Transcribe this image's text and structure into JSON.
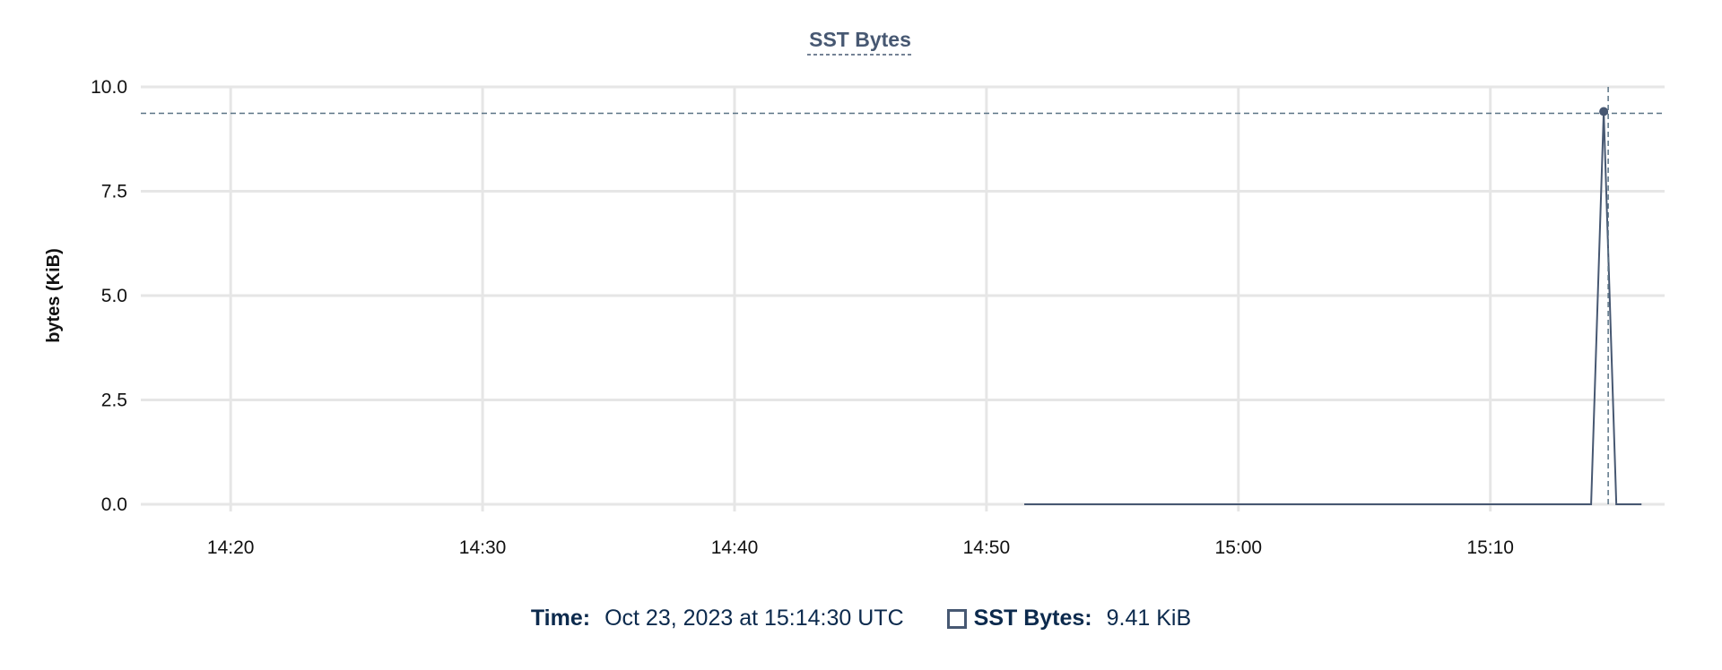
{
  "chart_data": {
    "type": "line",
    "title": "SST Bytes",
    "ylabel": "bytes (KiB)",
    "xlabel": "",
    "ylim": [
      0,
      10
    ],
    "yticks": [
      "0.0",
      "2.5",
      "5.0",
      "7.5",
      "10.0"
    ],
    "ytick_values": [
      0,
      2.5,
      5,
      7.5,
      10
    ],
    "xticks": [
      "14:20",
      "14:30",
      "14:40",
      "14:50",
      "15:00",
      "15:10"
    ],
    "xlim": [
      "14:16:26",
      "15:16:55"
    ],
    "grid": true,
    "series": [
      {
        "name": "SST Bytes",
        "color": "#475872",
        "x": [
          "14:51:30",
          "15:14:00",
          "15:14:30",
          "15:15:00",
          "15:16:00"
        ],
        "y": [
          0,
          0,
          9.41,
          0,
          0
        ]
      }
    ],
    "hover": {
      "x": "15:14:30",
      "y": 9.41
    }
  },
  "legend": {
    "time_label": "Time:",
    "time_value": "Oct 23, 2023 at 15:14:30 UTC",
    "series_label": "SST Bytes:",
    "series_value": "9.41 KiB"
  }
}
